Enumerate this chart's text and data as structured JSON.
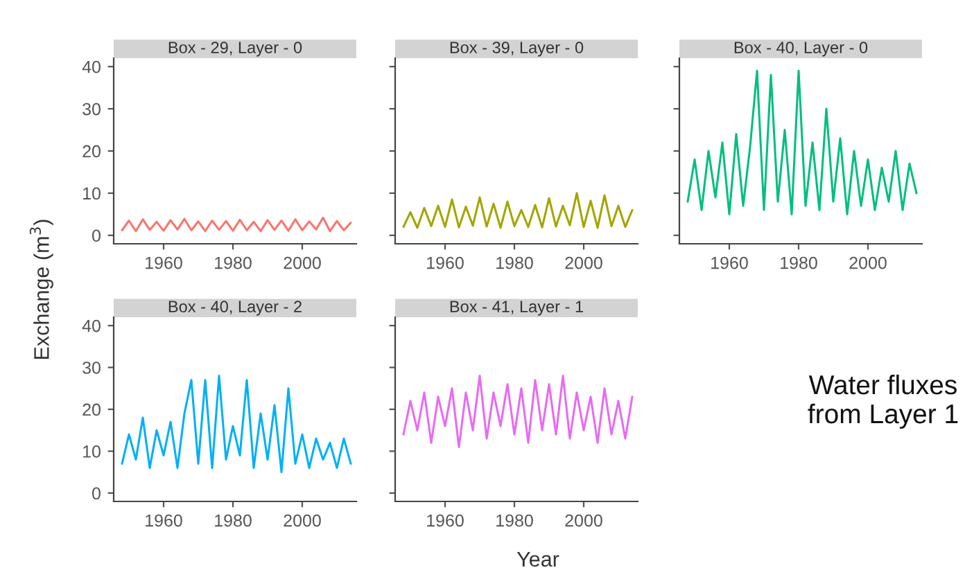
{
  "chart_data": [
    {
      "type": "line",
      "title": "Box - 29, Layer - 0",
      "ylabel": "Exchange (m$^{3}$)",
      "tick_labels": true,
      "xlim": [
        1945.6,
        2015.6
      ],
      "xticks": [
        1960,
        1980,
        2000
      ],
      "ylim": [
        -2,
        42
      ],
      "yticks": [
        0,
        10,
        20,
        30,
        40
      ],
      "grid": false,
      "legend": false,
      "x": [
        1948,
        1950,
        1952,
        1954,
        1956,
        1958,
        1960,
        1962,
        1964,
        1966,
        1968,
        1970,
        1972,
        1974,
        1976,
        1978,
        1980,
        1982,
        1984,
        1986,
        1988,
        1990,
        1992,
        1994,
        1996,
        1998,
        2000,
        2002,
        2004,
        2006,
        2008,
        2010,
        2012,
        2014
      ],
      "series": [
        {
          "color": "#F8766D",
          "values": [
            1.2,
            3.5,
            1.0,
            3.8,
            1.3,
            3.2,
            1.1,
            3.6,
            1.4,
            3.9,
            1.2,
            3.3,
            1.0,
            3.5,
            1.3,
            3.4,
            1.1,
            3.7,
            1.2,
            3.2,
            1.0,
            3.6,
            1.3,
            3.5,
            1.1,
            3.8,
            1.2,
            3.3,
            1.4,
            4.2,
            1.0,
            3.4,
            1.2,
            3.0
          ]
        }
      ]
    },
    {
      "type": "line",
      "title": "Box - 39, Layer - 0",
      "tick_labels": "x",
      "xlim": [
        1945.6,
        2015.6
      ],
      "xticks": [
        1960,
        1980,
        2000
      ],
      "ylim": [
        -2,
        42
      ],
      "yticks": [
        0,
        10,
        20,
        30,
        40
      ],
      "grid": false,
      "legend": false,
      "x": [
        1948,
        1950,
        1952,
        1954,
        1956,
        1958,
        1960,
        1962,
        1964,
        1966,
        1968,
        1970,
        1972,
        1974,
        1976,
        1978,
        1980,
        1982,
        1984,
        1986,
        1988,
        1990,
        1992,
        1994,
        1996,
        1998,
        2000,
        2002,
        2004,
        2006,
        2008,
        2010,
        2012,
        2014
      ],
      "series": [
        {
          "color": "#A3A500",
          "values": [
            2.0,
            5.5,
            1.8,
            6.5,
            2.2,
            7.0,
            2.0,
            8.5,
            1.9,
            6.8,
            2.3,
            9.0,
            2.1,
            7.5,
            1.8,
            8.0,
            2.2,
            6.0,
            2.0,
            7.2,
            1.9,
            8.8,
            2.1,
            7.0,
            2.4,
            10.0,
            2.0,
            8.2,
            1.8,
            9.5,
            2.2,
            7.0,
            2.0,
            6.0
          ]
        }
      ]
    },
    {
      "type": "line",
      "title": "Box - 40, Layer - 0",
      "tick_labels": "x",
      "xlim": [
        1945.6,
        2015.6
      ],
      "xticks": [
        1960,
        1980,
        2000
      ],
      "ylim": [
        -2,
        42
      ],
      "yticks": [
        0,
        10,
        20,
        30,
        40
      ],
      "grid": false,
      "legend": false,
      "x": [
        1948,
        1950,
        1952,
        1954,
        1956,
        1958,
        1960,
        1962,
        1964,
        1966,
        1968,
        1970,
        1972,
        1974,
        1976,
        1978,
        1980,
        1982,
        1984,
        1986,
        1988,
        1990,
        1992,
        1994,
        1996,
        1998,
        2000,
        2002,
        2004,
        2006,
        2008,
        2010,
        2012,
        2014
      ],
      "series": [
        {
          "color": "#00BF7D",
          "values": [
            8,
            18,
            6,
            20,
            9,
            22,
            5,
            24,
            7,
            21,
            39,
            6,
            38,
            8,
            25,
            5,
            39,
            7,
            22,
            6,
            30,
            8,
            23,
            5,
            20,
            7,
            18,
            6,
            16,
            8,
            20,
            6,
            17,
            10
          ]
        }
      ]
    },
    {
      "type": "line",
      "title": "Box - 40, Layer - 2",
      "tick_labels": true,
      "xlim": [
        1945.6,
        2015.6
      ],
      "xticks": [
        1960,
        1980,
        2000
      ],
      "ylim": [
        -2,
        42
      ],
      "yticks": [
        0,
        10,
        20,
        30,
        40
      ],
      "grid": false,
      "legend": false,
      "x": [
        1948,
        1950,
        1952,
        1954,
        1956,
        1958,
        1960,
        1962,
        1964,
        1966,
        1968,
        1970,
        1972,
        1974,
        1976,
        1978,
        1980,
        1982,
        1984,
        1986,
        1988,
        1990,
        1992,
        1994,
        1996,
        1998,
        2000,
        2002,
        2004,
        2006,
        2008,
        2010,
        2012,
        2014
      ],
      "series": [
        {
          "color": "#00B0F6",
          "values": [
            7,
            14,
            8,
            18,
            6,
            15,
            9,
            17,
            6,
            19,
            27,
            7,
            27,
            6,
            28,
            8,
            16,
            9,
            27,
            6,
            19,
            8,
            21,
            5,
            25,
            7,
            14,
            6,
            13,
            8,
            12,
            6,
            13,
            7
          ]
        }
      ]
    },
    {
      "type": "line",
      "title": "Box - 41, Layer - 1",
      "xlabel": "Year",
      "tick_labels": "x",
      "xlim": [
        1945.6,
        2015.6
      ],
      "xticks": [
        1960,
        1980,
        2000
      ],
      "ylim": [
        -2,
        42
      ],
      "yticks": [
        0,
        10,
        20,
        30,
        40
      ],
      "grid": false,
      "legend": false,
      "annotations": [
        "Water fluxes from Layer 1"
      ],
      "x": [
        1948,
        1950,
        1952,
        1954,
        1956,
        1958,
        1960,
        1962,
        1964,
        1966,
        1968,
        1970,
        1972,
        1974,
        1976,
        1978,
        1980,
        1982,
        1984,
        1986,
        1988,
        1990,
        1992,
        1994,
        1996,
        1998,
        2000,
        2002,
        2004,
        2006,
        2008,
        2010,
        2012,
        2014
      ],
      "series": [
        {
          "color": "#E76BF3",
          "values": [
            14,
            22,
            15,
            24,
            12,
            23,
            16,
            25,
            11,
            24,
            15,
            28,
            13,
            24,
            16,
            26,
            14,
            25,
            12,
            27,
            15,
            26,
            14,
            28,
            13,
            24,
            15,
            23,
            12,
            25,
            14,
            22,
            13,
            23
          ]
        }
      ]
    }
  ]
}
